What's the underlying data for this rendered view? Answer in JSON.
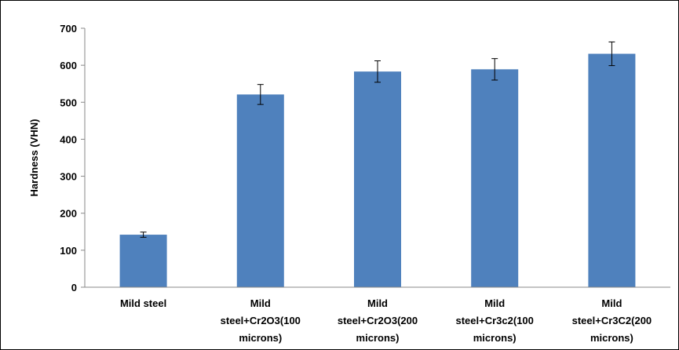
{
  "chart_data": {
    "type": "bar",
    "title": "",
    "xlabel": "",
    "ylabel": "Hardness (VHN)",
    "ylim": [
      0,
      700
    ],
    "ytick_step": 100,
    "grid": false,
    "legend": "none",
    "bar_color": "#4f81bd",
    "categories": [
      [
        "Mild steel"
      ],
      [
        "Mild",
        "steel+Cr2O3(100",
        "microns)"
      ],
      [
        "Mild",
        "steel+Cr2O3(200",
        "microns)"
      ],
      [
        "Mild",
        "steel+Cr3c2(100",
        "microns)"
      ],
      [
        "Mild",
        "steel+Cr3C2(200",
        "microns)"
      ]
    ],
    "values": [
      142,
      521,
      583,
      589,
      631
    ],
    "error": [
      7,
      27,
      29,
      29,
      32
    ]
  }
}
